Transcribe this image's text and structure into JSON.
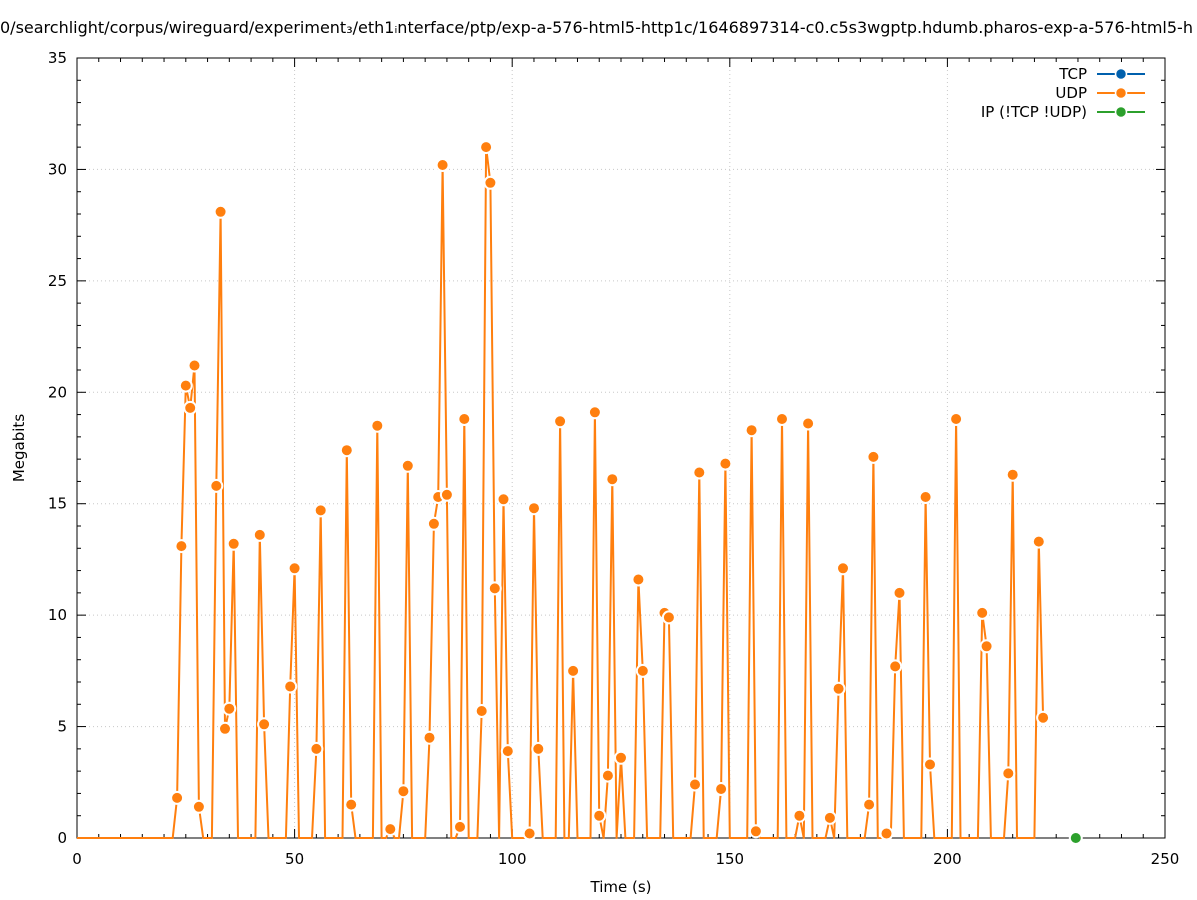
{
  "chart_data": {
    "type": "line",
    "title": "0/searchlight/corpus/wireguard/experiment₃/eth1ᵢnterface/ptp/exp-a-576-html5-http1c/1646897314-c0.c5s3wgptp.hdumb.pharos-exp-a-576-html5-h",
    "xlabel": "Time (s)",
    "ylabel": "Megabits",
    "xlim": [
      0,
      250
    ],
    "ylim": [
      0,
      35
    ],
    "xticks": [
      0,
      50,
      100,
      150,
      200,
      250
    ],
    "yticks": [
      0,
      5,
      10,
      15,
      20,
      25,
      30,
      35
    ],
    "grid": true,
    "legend_position": "top-right",
    "series": [
      {
        "name": "TCP",
        "color": "#0060ad",
        "x": [],
        "y": []
      },
      {
        "name": "UDP",
        "color": "#ff7f0e",
        "x": [
          0,
          1,
          2,
          3,
          4,
          5,
          6,
          7,
          8,
          9,
          10,
          11,
          12,
          13,
          14,
          15,
          16,
          17,
          18,
          19,
          20,
          21,
          22,
          23,
          24,
          25,
          26,
          27,
          28,
          29,
          30,
          31,
          32,
          33,
          34,
          35,
          36,
          37,
          38,
          39,
          40,
          41,
          42,
          43,
          44,
          45,
          46,
          47,
          48,
          49,
          50,
          51,
          52,
          53,
          54,
          55,
          56,
          57,
          58,
          59,
          60,
          61,
          62,
          63,
          64,
          65,
          66,
          67,
          68,
          69,
          70,
          71,
          72,
          73,
          74,
          75,
          76,
          77,
          78,
          79,
          80,
          81,
          82,
          83,
          84,
          85,
          86,
          87,
          88,
          89,
          90,
          91,
          92,
          93,
          94,
          95,
          96,
          97,
          98,
          99,
          100,
          101,
          102,
          103,
          104,
          105,
          106,
          107,
          108,
          109,
          110,
          111,
          112,
          113,
          114,
          115,
          116,
          117,
          118,
          119,
          120,
          121,
          122,
          123,
          124,
          125,
          126,
          127,
          128,
          129,
          130,
          131,
          132,
          133,
          134,
          135,
          136,
          137,
          138,
          139,
          140,
          141,
          142,
          143,
          144,
          145,
          146,
          147,
          148,
          149,
          150,
          151,
          152,
          153,
          154,
          155,
          156,
          157,
          158,
          159,
          160,
          161,
          162,
          163,
          164,
          165,
          166,
          167,
          168,
          169,
          170,
          171,
          172,
          173,
          174,
          175,
          176,
          177,
          178,
          179,
          180,
          181,
          182,
          183,
          184,
          185,
          186,
          187,
          188,
          189,
          190,
          191,
          192,
          193,
          194,
          195,
          196,
          197,
          198,
          199,
          200,
          201,
          202,
          203,
          204,
          205,
          206,
          207,
          208,
          209,
          210,
          211,
          212,
          213,
          214,
          215,
          216,
          217,
          218,
          219,
          220,
          221,
          222
        ],
        "y": [
          0,
          0,
          0,
          0,
          0,
          0,
          0,
          0,
          0,
          0,
          0,
          0,
          0,
          0,
          0,
          0,
          0,
          0,
          0,
          0,
          0,
          0,
          0,
          1.8,
          13.1,
          20.3,
          19.3,
          21.2,
          1.4,
          0,
          0,
          0,
          15.8,
          28.1,
          4.9,
          5.8,
          13.2,
          0,
          0,
          0,
          0,
          0,
          13.6,
          5.1,
          0,
          0,
          0,
          0,
          0,
          6.8,
          12.1,
          0,
          0,
          0,
          0,
          4.0,
          14.7,
          0,
          0,
          0,
          0,
          0,
          17.4,
          1.5,
          0,
          0,
          0,
          0,
          0,
          18.5,
          0,
          0,
          0.4,
          0,
          0,
          2.1,
          16.7,
          0,
          0,
          0,
          0,
          4.5,
          14.1,
          15.3,
          30.2,
          15.4,
          0,
          0,
          0.5,
          18.8,
          0,
          0,
          0,
          5.7,
          31.0,
          29.4,
          11.2,
          0,
          15.2,
          3.9,
          0,
          0,
          0,
          0,
          0.2,
          14.8,
          4.0,
          0,
          0,
          0,
          0,
          18.7,
          0,
          0,
          7.5,
          0,
          0,
          0,
          0,
          19.1,
          1.0,
          0,
          2.8,
          16.1,
          0,
          3.6,
          0,
          0,
          0,
          11.6,
          7.5,
          0,
          0,
          0,
          0,
          10.1,
          9.9,
          0,
          0,
          0,
          0,
          0,
          2.4,
          16.4,
          0,
          0,
          0,
          0,
          2.2,
          16.8,
          0,
          0,
          0,
          0,
          0,
          18.3,
          0.3,
          0,
          0,
          0,
          0,
          0,
          18.8,
          0,
          0,
          0,
          1.0,
          0,
          18.6,
          0,
          0,
          0,
          0,
          0.9,
          0,
          6.7,
          12.1,
          0,
          0,
          0,
          0,
          0,
          1.5,
          17.1,
          0,
          0,
          0.2,
          0,
          7.7,
          11.0,
          0,
          0,
          0,
          0,
          0,
          15.3,
          3.3,
          0,
          0,
          0,
          0,
          0,
          18.8,
          0,
          0,
          0,
          0,
          0,
          10.1,
          8.6,
          0,
          0,
          0,
          0,
          2.9,
          16.3,
          0,
          0,
          0,
          0,
          0,
          13.3,
          5.4
        ]
      },
      {
        "name": "IP (!TCP  !UDP)",
        "color": "#2ca02c",
        "x": [
          229.5
        ],
        "y": [
          0
        ]
      }
    ]
  }
}
